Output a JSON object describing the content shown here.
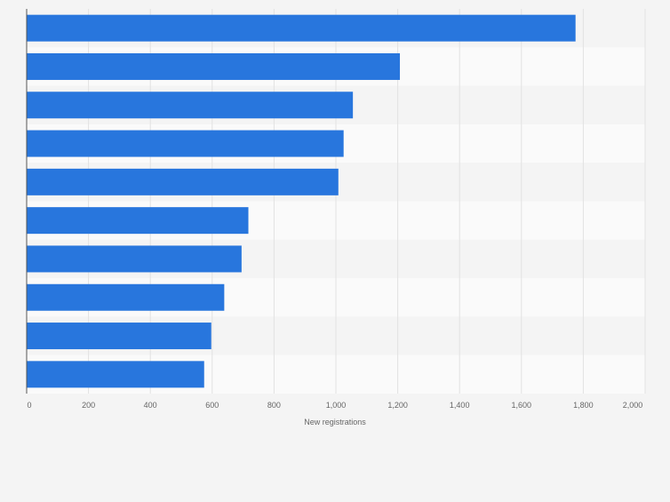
{
  "chart_data": {
    "type": "bar",
    "orientation": "horizontal",
    "title": "",
    "xlabel": "New registrations",
    "ylabel": "",
    "xlim": [
      0,
      2000
    ],
    "ticks": [
      0,
      200,
      400,
      600,
      800,
      1000,
      1200,
      1400,
      1600,
      1800,
      2000
    ],
    "tick_labels": [
      "0",
      "200",
      "400",
      "600",
      "800",
      "1,000",
      "1,200",
      "1,400",
      "1,600",
      "1,800",
      "2,000"
    ],
    "categories": [
      "",
      "",
      "",
      "",
      "",
      "",
      "",
      "",
      "",
      ""
    ],
    "values": [
      1775,
      1207,
      1055,
      1025,
      1008,
      717,
      695,
      639,
      597,
      574
    ],
    "grid": true,
    "bar_color": "#2876dd"
  }
}
